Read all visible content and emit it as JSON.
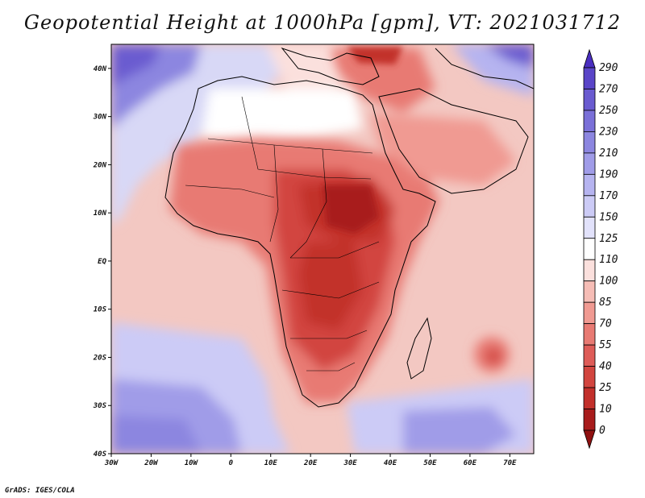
{
  "title": "Geopotential Height at 1000hPa [gpm], VT: 2021031712",
  "credit": "GrADS: IGES/COLA",
  "map": {
    "lon_range": [
      -30,
      76
    ],
    "lat_range": [
      -40,
      45
    ],
    "x_ticks": [
      {
        "lon": -30,
        "label": "30W"
      },
      {
        "lon": -20,
        "label": "20W"
      },
      {
        "lon": -10,
        "label": "10W"
      },
      {
        "lon": 0,
        "label": "0"
      },
      {
        "lon": 10,
        "label": "10E"
      },
      {
        "lon": 20,
        "label": "20E"
      },
      {
        "lon": 30,
        "label": "30E"
      },
      {
        "lon": 40,
        "label": "40E"
      },
      {
        "lon": 50,
        "label": "50E"
      },
      {
        "lon": 60,
        "label": "60E"
      },
      {
        "lon": 70,
        "label": "70E"
      }
    ],
    "y_ticks": [
      {
        "lat": 40,
        "label": "40N"
      },
      {
        "lat": 30,
        "label": "30N"
      },
      {
        "lat": 20,
        "label": "20N"
      },
      {
        "lat": 10,
        "label": "10N"
      },
      {
        "lat": 0,
        "label": "EQ"
      },
      {
        "lat": -10,
        "label": "10S"
      },
      {
        "lat": -20,
        "label": "20S"
      },
      {
        "lat": -30,
        "label": "30S"
      },
      {
        "lat": -40,
        "label": "40S"
      }
    ]
  },
  "colorbar": {
    "levels": [
      "290",
      "270",
      "250",
      "230",
      "210",
      "190",
      "170",
      "150",
      "125",
      "110",
      "100",
      "85",
      "70",
      "55",
      "40",
      "25",
      "10",
      "0"
    ],
    "colors": [
      "#4a2ec0",
      "#5a45c8",
      "#6a5bd0",
      "#7a70d8",
      "#8c86e0",
      "#a09ce8",
      "#b6b4f0",
      "#cccbf6",
      "#e2e2fb",
      "#ffffff",
      "#fbe0dd",
      "#f6bdb6",
      "#f09a92",
      "#e87a73",
      "#de5c58",
      "#d2453f",
      "#c2302b",
      "#a81c1c",
      "#8f1010"
    ]
  }
}
